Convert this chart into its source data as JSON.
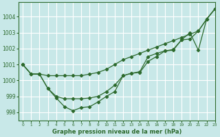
{
  "bg_color": "#c8e8e8",
  "grid_color": "#ffffff",
  "line_color": "#2d6a2d",
  "title": "Graphe pression niveau de la mer (hPa)",
  "xlim": [
    -0.5,
    23
  ],
  "ylim": [
    997.5,
    1004.9
  ],
  "yticks": [
    998,
    999,
    1000,
    1001,
    1002,
    1003,
    1004
  ],
  "xticks": [
    0,
    1,
    2,
    3,
    4,
    5,
    6,
    7,
    8,
    9,
    10,
    11,
    12,
    13,
    14,
    15,
    16,
    17,
    18,
    19,
    20,
    21,
    22,
    23
  ],
  "line1": [
    1001.0,
    1000.4,
    1000.4,
    1000.3,
    1000.3,
    1000.3,
    1000.3,
    1000.3,
    1000.4,
    1000.5,
    1000.7,
    1001.0,
    1001.3,
    1001.5,
    1001.7,
    1001.9,
    1002.1,
    1002.3,
    1002.5,
    1002.7,
    1002.9,
    1003.1,
    1003.85,
    1004.5
  ],
  "line2": [
    1001.0,
    1000.4,
    1000.4,
    999.5,
    999.0,
    998.85,
    998.85,
    998.85,
    998.9,
    999.0,
    999.3,
    999.7,
    1000.3,
    1000.45,
    1000.55,
    1001.5,
    1001.7,
    1001.85,
    1001.95,
    1002.55,
    1003.0,
    1001.9,
    1003.85,
    1004.5
  ],
  "line3": [
    1001.0,
    1000.4,
    1000.4,
    999.5,
    998.9,
    998.35,
    998.1,
    998.3,
    998.35,
    998.65,
    999.0,
    999.3,
    1000.3,
    1000.45,
    1000.5,
    1001.2,
    1001.5,
    1001.85,
    1001.9,
    1002.55,
    1002.6,
    1003.1,
    1003.85,
    1004.5
  ]
}
